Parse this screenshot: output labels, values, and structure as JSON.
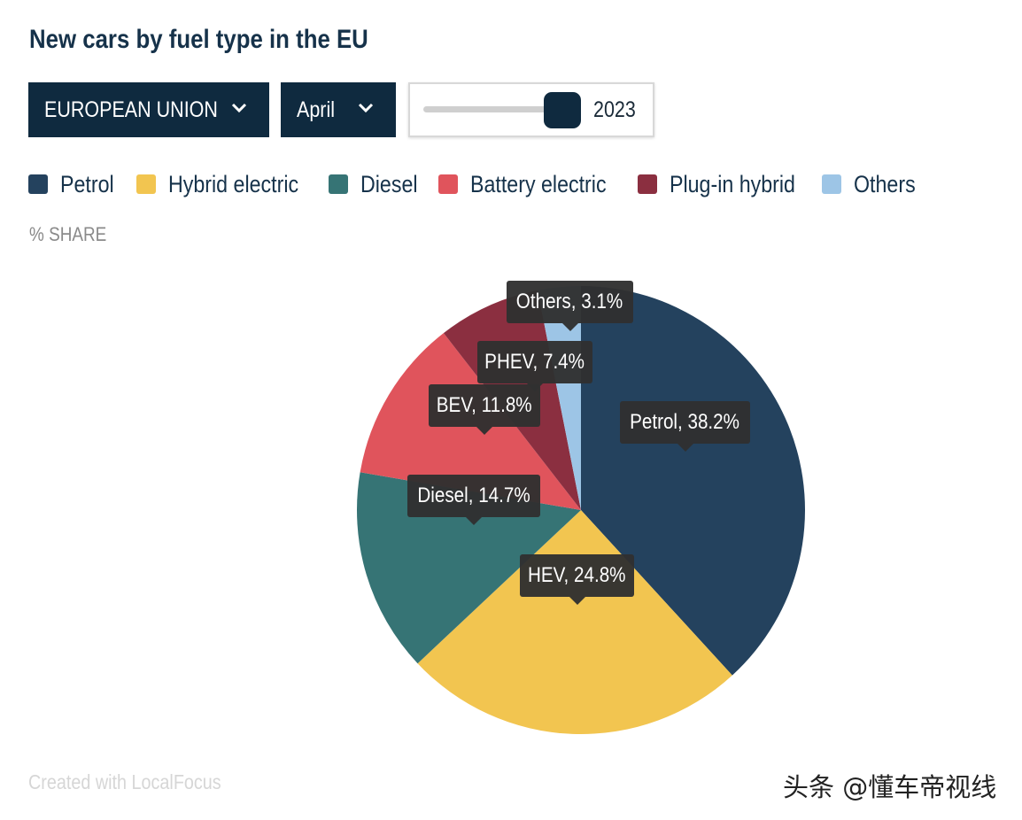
{
  "header": {
    "title": "New cars by fuel type in the EU"
  },
  "controls": {
    "region": "EUROPEAN UNION",
    "month": "April",
    "year": "2023"
  },
  "legend": [
    {
      "label": "Petrol",
      "color": "#24425e"
    },
    {
      "label": "Hybrid electric",
      "color": "#f2c550"
    },
    {
      "label": "Diesel",
      "color": "#367475"
    },
    {
      "label": "Battery electric",
      "color": "#e0545c"
    },
    {
      "label": "Plug-in hybrid",
      "color": "#8b2f40"
    },
    {
      "label": "Others",
      "color": "#9dc5e6"
    }
  ],
  "axis_label": "% SHARE",
  "chart_data": {
    "type": "pie",
    "title": "New cars by fuel type in the EU",
    "unit": "% SHARE",
    "slices": [
      {
        "name": "Petrol",
        "short": "Petrol",
        "value": 38.2,
        "color": "#24425e"
      },
      {
        "name": "Hybrid electric",
        "short": "HEV",
        "value": 24.8,
        "color": "#f2c550"
      },
      {
        "name": "Diesel",
        "short": "Diesel",
        "value": 14.7,
        "color": "#367475"
      },
      {
        "name": "Battery electric",
        "short": "BEV",
        "value": 11.8,
        "color": "#e0545c"
      },
      {
        "name": "Plug-in hybrid",
        "short": "PHEV",
        "value": 7.4,
        "color": "#8b2f40"
      },
      {
        "name": "Others",
        "short": "Others",
        "value": 3.1,
        "color": "#9dc5e6"
      }
    ],
    "labels": [
      "Petrol, 38.2%",
      "HEV, 24.8%",
      "Diesel, 14.7%",
      "BEV, 11.8%",
      "PHEV, 7.4%",
      "Others, 3.1%"
    ]
  },
  "footer": {
    "credit": "Created with LocalFocus",
    "watermark": "头条 @懂车帝视线"
  }
}
